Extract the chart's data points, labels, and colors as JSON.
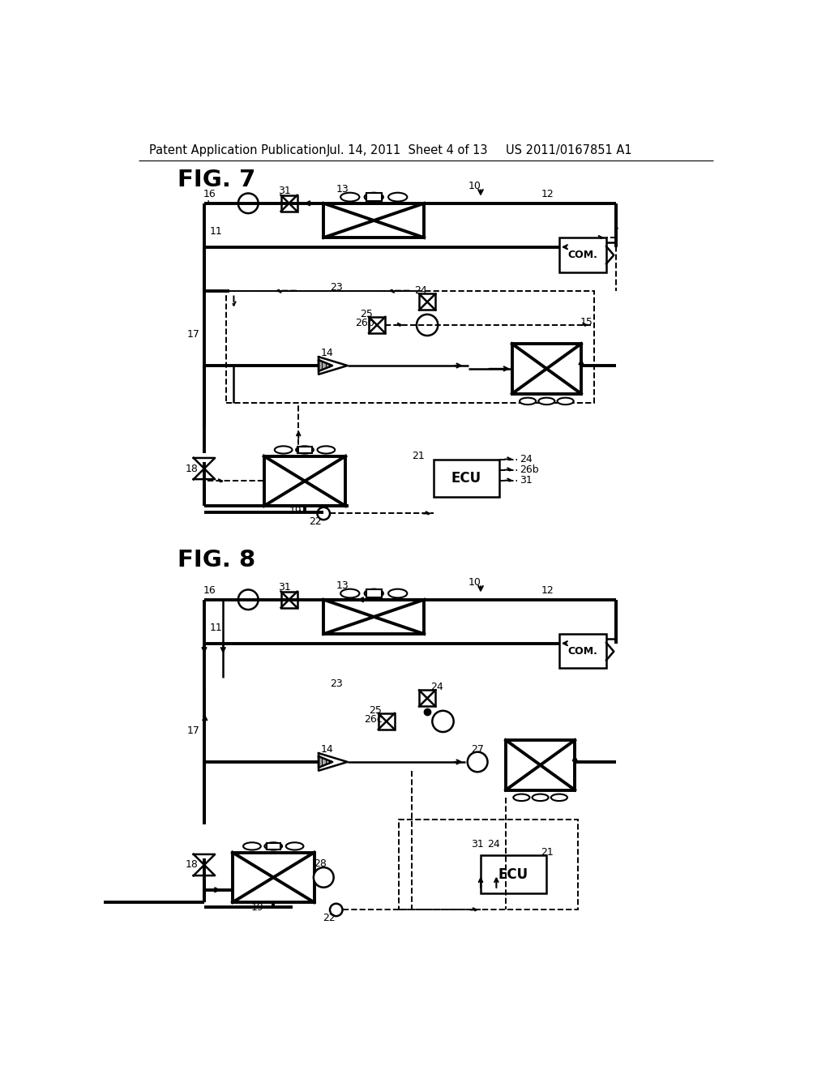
{
  "background_color": "#ffffff",
  "header_text": "Patent Application Publication",
  "header_date": "Jul. 14, 2011  Sheet 4 of 13",
  "header_patent": "US 2011/0167851 A1",
  "fig7_label": "FIG. 7",
  "fig8_label": "FIG. 8"
}
